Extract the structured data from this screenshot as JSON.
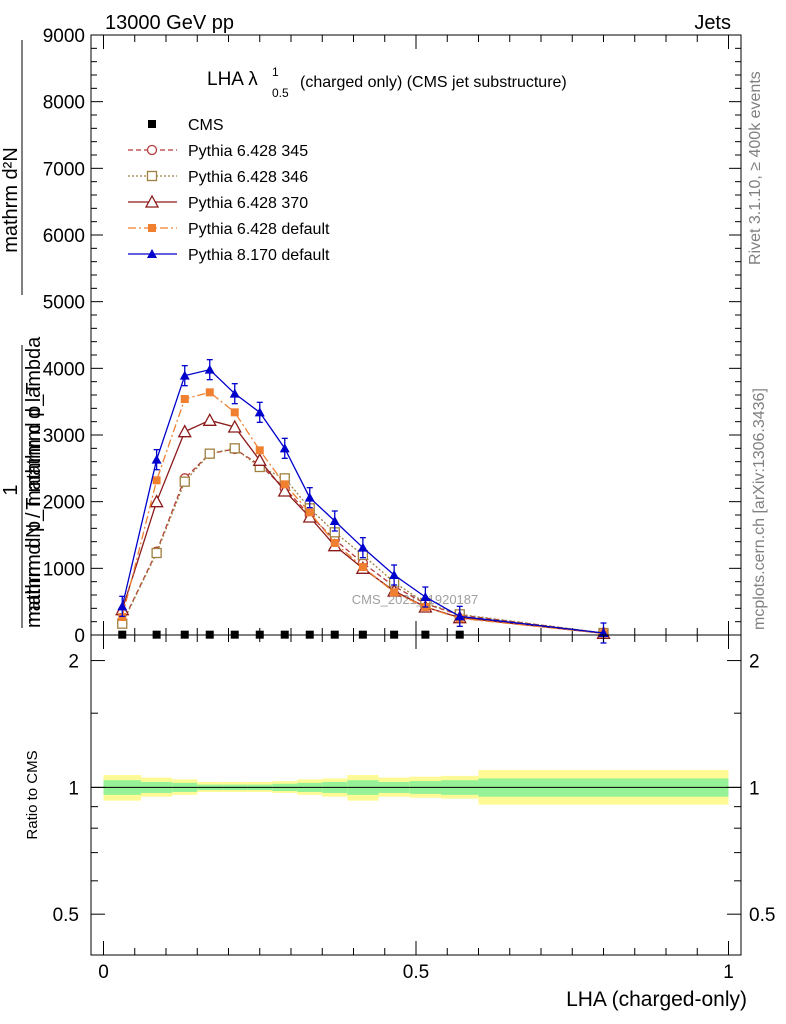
{
  "header": {
    "left": "13000 GeV pp",
    "right": "Jets"
  },
  "side_text": {
    "rivet": "Rivet 3.1.10, ≥ 400k events",
    "mcplots": "mcplots.cern.ch [arXiv:1306.3436]"
  },
  "chart_data": [
    {
      "type": "line",
      "title": "LHA λ",
      "title_sup": "1",
      "title_sub": "0.5",
      "title_rest": "(charged only) (CMS jet substructure)",
      "watermark": "CMS_2021_I1920187",
      "ylabel_top": "mathrm d²N",
      "ylabel_bottom": "mathrm d p_T mathrm d lambda",
      "ylabel_one": "1",
      "ylabel_den": "mathrm d N / mathrm d p_T",
      "xlim": [
        -0.02,
        1.02
      ],
      "ylim": [
        0,
        9000
      ],
      "yticks": [
        0,
        1000,
        2000,
        3000,
        4000,
        5000,
        6000,
        7000,
        8000,
        9000
      ],
      "yticklabels": [
        "0",
        "1000",
        "2000",
        "3000",
        "4000",
        "5000",
        "6000",
        "7000",
        "8000",
        "9000"
      ],
      "x": [
        0.03,
        0.085,
        0.13,
        0.17,
        0.21,
        0.25,
        0.29,
        0.33,
        0.37,
        0.415,
        0.465,
        0.515,
        0.57,
        0.8
      ],
      "series": [
        {
          "name": "CMS",
          "color": "#000000",
          "marker": "square-filled",
          "dash": "",
          "values": [
            5,
            5,
            5,
            5,
            5,
            5,
            5,
            5,
            5,
            5,
            5,
            5,
            5,
            null
          ]
        },
        {
          "name": "Pythia 6.428 345",
          "color": "#b5393b",
          "marker": "circle-open",
          "dash": "5,3",
          "values": [
            180,
            1250,
            2350,
            2720,
            2790,
            2550,
            2200,
            1800,
            1430,
            1080,
            730,
            470,
            300,
            30
          ]
        },
        {
          "name": "Pythia 6.428 346",
          "color": "#a08040",
          "marker": "square-open",
          "dash": "2,2",
          "values": [
            170,
            1230,
            2300,
            2720,
            2800,
            2520,
            2350,
            1900,
            1540,
            1200,
            790,
            480,
            310,
            30
          ]
        },
        {
          "name": "Pythia 6.428 370",
          "color": "#8b1a1a",
          "marker": "triangle-open",
          "dash": "",
          "values": [
            380,
            2000,
            3050,
            3220,
            3120,
            2620,
            2160,
            1770,
            1340,
            1000,
            660,
            420,
            260,
            25
          ]
        },
        {
          "name": "Pythia 6.428 default",
          "color": "#f08030",
          "marker": "square-filled",
          "dash": "8,3,2,3",
          "values": [
            270,
            2320,
            3540,
            3640,
            3340,
            2770,
            2260,
            1840,
            1380,
            1020,
            640,
            420,
            250,
            25
          ]
        },
        {
          "name": "Pythia 8.170 default",
          "color": "#0000cc",
          "marker": "triangle-filled",
          "dash": "",
          "values": [
            430,
            2630,
            3890,
            3980,
            3620,
            3340,
            2800,
            2060,
            1710,
            1310,
            900,
            570,
            280,
            30
          ]
        }
      ],
      "yerr": 150
    },
    {
      "type": "area",
      "ylabel": "Ratio to CMS",
      "xlabel": "LHA (charged-only)",
      "xlim": [
        -0.02,
        1.02
      ],
      "ylim": [
        0.4,
        2.3
      ],
      "log_y": true,
      "yticklabels": [
        "0.5",
        "1",
        "2"
      ],
      "yticks": [
        0.5,
        1,
        2
      ],
      "xticklabels": [
        "0",
        "0.5",
        "1"
      ],
      "xticks": [
        0,
        0.5,
        1
      ],
      "band_edges": [
        0,
        0.06,
        0.11,
        0.15,
        0.19,
        0.23,
        0.27,
        0.31,
        0.35,
        0.39,
        0.44,
        0.49,
        0.54,
        0.6,
        1.0
      ],
      "yellow_low": [
        0.93,
        0.95,
        0.96,
        0.975,
        0.975,
        0.975,
        0.97,
        0.96,
        0.95,
        0.93,
        0.95,
        0.945,
        0.94,
        0.91
      ],
      "yellow_high": [
        1.07,
        1.055,
        1.045,
        1.03,
        1.03,
        1.03,
        1.035,
        1.045,
        1.05,
        1.07,
        1.055,
        1.06,
        1.065,
        1.1
      ],
      "green_low": [
        0.96,
        0.97,
        0.975,
        0.985,
        0.985,
        0.985,
        0.98,
        0.975,
        0.97,
        0.96,
        0.97,
        0.965,
        0.96,
        0.95
      ],
      "green_high": [
        1.04,
        1.03,
        1.025,
        1.015,
        1.015,
        1.015,
        1.02,
        1.025,
        1.03,
        1.04,
        1.03,
        1.035,
        1.04,
        1.05
      ],
      "colors": {
        "yellow": "#fffa96",
        "green": "#96f296"
      }
    }
  ]
}
